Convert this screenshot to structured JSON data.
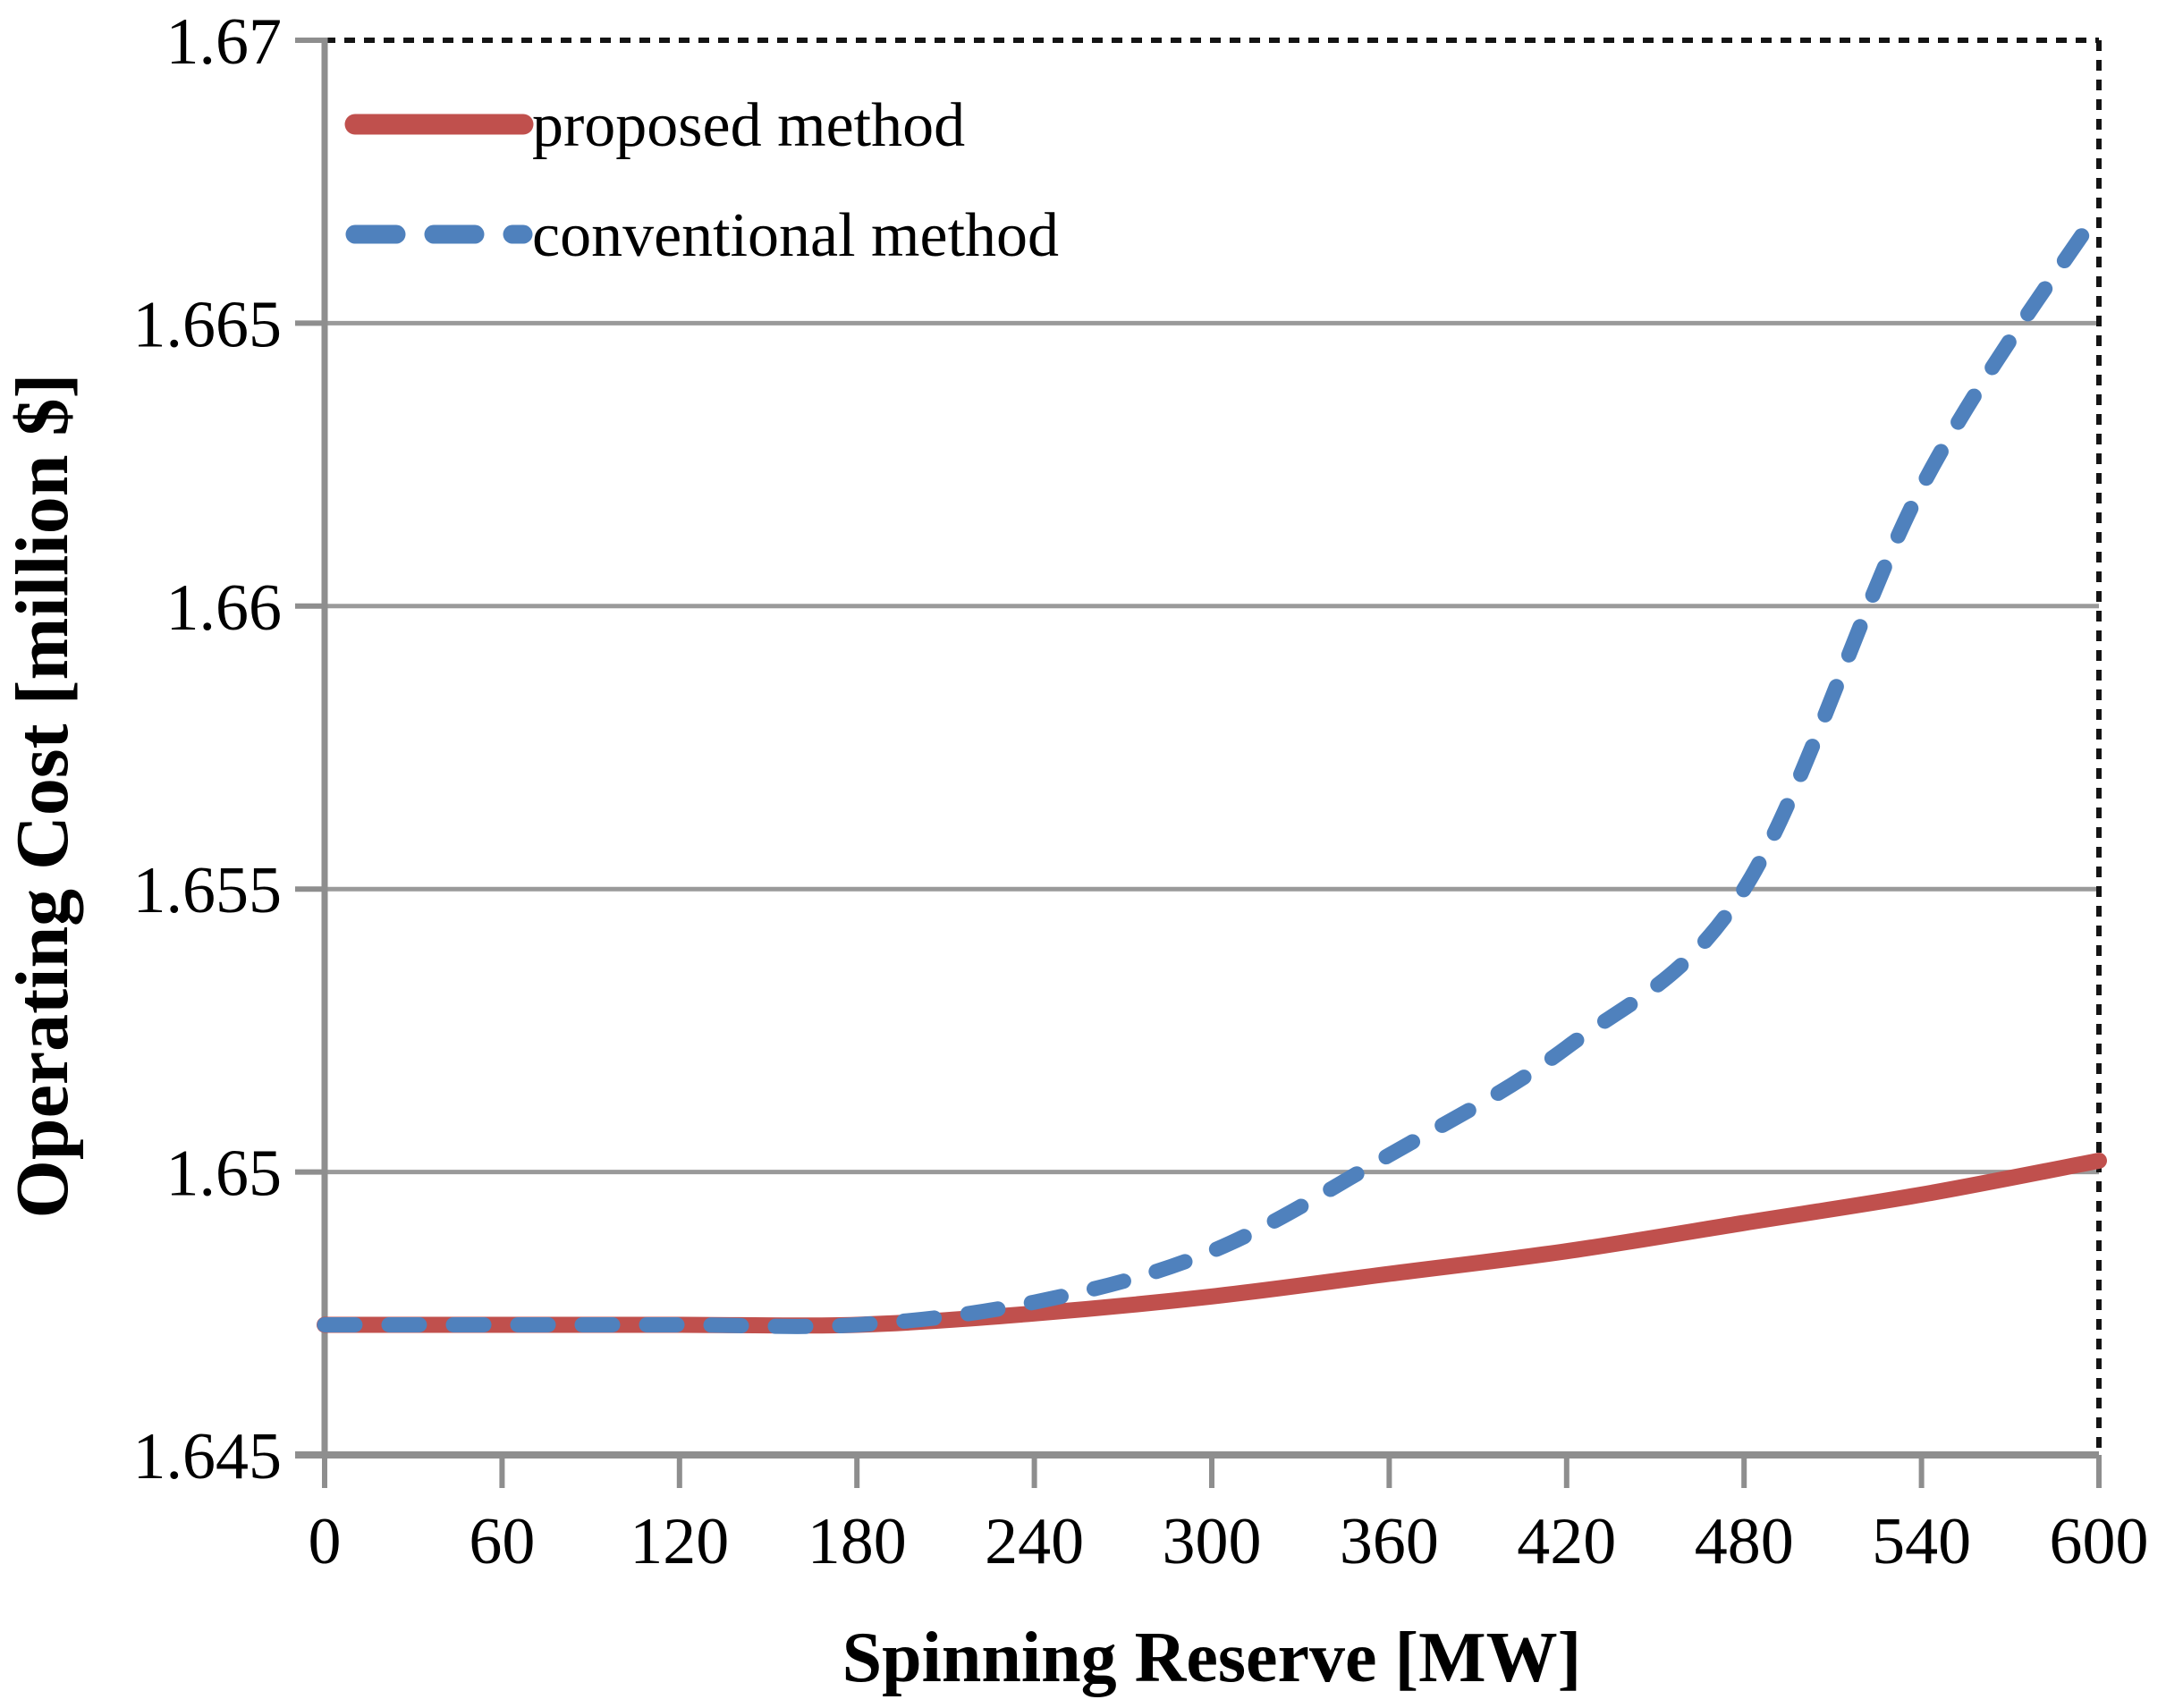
{
  "chart_data": {
    "type": "line",
    "title": "",
    "xlabel": "Spinning Reserve [MW]",
    "ylabel": "Operating Cost [million $]",
    "xlim": [
      0,
      600
    ],
    "ylim": [
      1.645,
      1.67
    ],
    "grid": "horizontal-gridlines-on",
    "legend_position": "top-left-inside",
    "x_ticks": [
      0,
      60,
      120,
      180,
      240,
      300,
      360,
      420,
      480,
      540,
      600
    ],
    "x_tick_labels": [
      "0",
      "60",
      "120",
      "180",
      "240",
      "300",
      "360",
      "420",
      "480",
      "540",
      "600"
    ],
    "y_ticks": [
      1.645,
      1.65,
      1.655,
      1.66,
      1.665,
      1.67
    ],
    "y_tick_labels": [
      "1.645",
      "1.65",
      "1.655",
      "1.66",
      "1.665",
      "1.67"
    ],
    "x": [
      0,
      60,
      120,
      180,
      240,
      300,
      360,
      420,
      480,
      540,
      600
    ],
    "series": [
      {
        "name": "proposed method",
        "style": "solid",
        "color": "#C0504D",
        "values": [
          1.6473,
          1.6473,
          1.6473,
          1.6473,
          1.6475,
          1.6478,
          1.6482,
          1.6486,
          1.6491,
          1.6496,
          1.6502
        ]
      },
      {
        "name": "conventional method",
        "style": "dashed",
        "color": "#4F81BD",
        "values": [
          1.6473,
          1.6473,
          1.6473,
          1.6473,
          1.6477,
          1.6486,
          1.6503,
          1.6522,
          1.655,
          1.6621,
          1.667
        ]
      }
    ]
  },
  "colors": {
    "gridline": "#9A9A9A",
    "axis": "#8E8E8E",
    "border": "#141414",
    "text": "#000000"
  }
}
